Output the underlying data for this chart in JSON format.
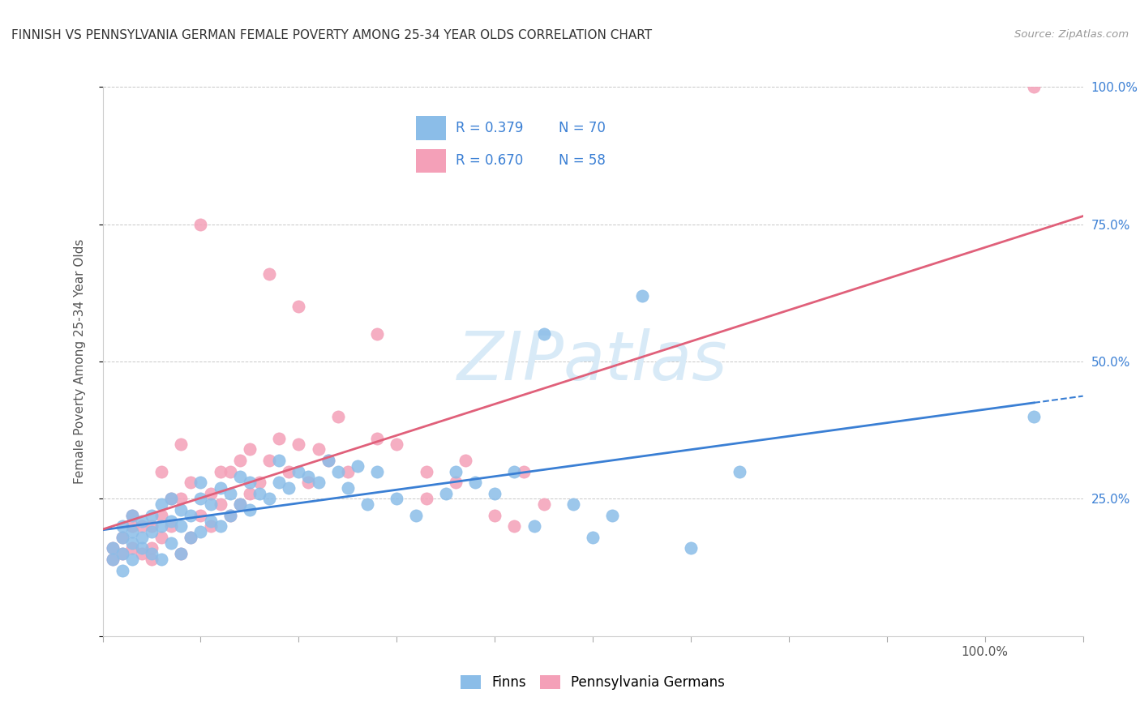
{
  "title": "FINNISH VS PENNSYLVANIA GERMAN FEMALE POVERTY AMONG 25-34 YEAR OLDS CORRELATION CHART",
  "source": "Source: ZipAtlas.com",
  "ylabel": "Female Poverty Among 25-34 Year Olds",
  "xlim": [
    0,
    1.0
  ],
  "ylim": [
    0,
    1.0
  ],
  "finn_R": 0.379,
  "finn_N": 70,
  "pagerman_R": 0.67,
  "pagerman_N": 58,
  "finn_color": "#8bbde8",
  "pagerman_color": "#f4a0b8",
  "finn_line_color": "#3a7fd4",
  "pagerman_line_color": "#e0607a",
  "legend_label_finn": "Finns",
  "legend_label_pagerman": "Pennsylvania Germans",
  "finn_scatter": [
    [
      0.01,
      0.14
    ],
    [
      0.01,
      0.16
    ],
    [
      0.02,
      0.12
    ],
    [
      0.02,
      0.15
    ],
    [
      0.02,
      0.18
    ],
    [
      0.02,
      0.2
    ],
    [
      0.03,
      0.14
    ],
    [
      0.03,
      0.17
    ],
    [
      0.03,
      0.19
    ],
    [
      0.03,
      0.22
    ],
    [
      0.04,
      0.16
    ],
    [
      0.04,
      0.18
    ],
    [
      0.04,
      0.21
    ],
    [
      0.05,
      0.15
    ],
    [
      0.05,
      0.19
    ],
    [
      0.05,
      0.22
    ],
    [
      0.06,
      0.14
    ],
    [
      0.06,
      0.2
    ],
    [
      0.06,
      0.24
    ],
    [
      0.07,
      0.17
    ],
    [
      0.07,
      0.21
    ],
    [
      0.07,
      0.25
    ],
    [
      0.08,
      0.15
    ],
    [
      0.08,
      0.2
    ],
    [
      0.08,
      0.23
    ],
    [
      0.09,
      0.18
    ],
    [
      0.09,
      0.22
    ],
    [
      0.1,
      0.19
    ],
    [
      0.1,
      0.25
    ],
    [
      0.1,
      0.28
    ],
    [
      0.11,
      0.21
    ],
    [
      0.11,
      0.24
    ],
    [
      0.12,
      0.2
    ],
    [
      0.12,
      0.27
    ],
    [
      0.13,
      0.22
    ],
    [
      0.13,
      0.26
    ],
    [
      0.14,
      0.24
    ],
    [
      0.14,
      0.29
    ],
    [
      0.15,
      0.23
    ],
    [
      0.15,
      0.28
    ],
    [
      0.16,
      0.26
    ],
    [
      0.17,
      0.25
    ],
    [
      0.18,
      0.28
    ],
    [
      0.18,
      0.32
    ],
    [
      0.19,
      0.27
    ],
    [
      0.2,
      0.3
    ],
    [
      0.21,
      0.29
    ],
    [
      0.22,
      0.28
    ],
    [
      0.23,
      0.32
    ],
    [
      0.24,
      0.3
    ],
    [
      0.25,
      0.27
    ],
    [
      0.26,
      0.31
    ],
    [
      0.27,
      0.24
    ],
    [
      0.28,
      0.3
    ],
    [
      0.3,
      0.25
    ],
    [
      0.32,
      0.22
    ],
    [
      0.35,
      0.26
    ],
    [
      0.36,
      0.3
    ],
    [
      0.38,
      0.28
    ],
    [
      0.4,
      0.26
    ],
    [
      0.42,
      0.3
    ],
    [
      0.44,
      0.2
    ],
    [
      0.45,
      0.55
    ],
    [
      0.48,
      0.24
    ],
    [
      0.5,
      0.18
    ],
    [
      0.52,
      0.22
    ],
    [
      0.55,
      0.62
    ],
    [
      0.6,
      0.16
    ],
    [
      0.65,
      0.3
    ],
    [
      0.95,
      0.4
    ]
  ],
  "pagerman_scatter": [
    [
      0.01,
      0.14
    ],
    [
      0.01,
      0.16
    ],
    [
      0.02,
      0.15
    ],
    [
      0.02,
      0.18
    ],
    [
      0.03,
      0.16
    ],
    [
      0.03,
      0.2
    ],
    [
      0.03,
      0.22
    ],
    [
      0.04,
      0.15
    ],
    [
      0.04,
      0.2
    ],
    [
      0.05,
      0.14
    ],
    [
      0.05,
      0.16
    ],
    [
      0.05,
      0.2
    ],
    [
      0.06,
      0.18
    ],
    [
      0.06,
      0.22
    ],
    [
      0.06,
      0.3
    ],
    [
      0.07,
      0.2
    ],
    [
      0.07,
      0.25
    ],
    [
      0.08,
      0.15
    ],
    [
      0.08,
      0.25
    ],
    [
      0.08,
      0.35
    ],
    [
      0.09,
      0.18
    ],
    [
      0.09,
      0.28
    ],
    [
      0.1,
      0.22
    ],
    [
      0.11,
      0.2
    ],
    [
      0.11,
      0.26
    ],
    [
      0.12,
      0.24
    ],
    [
      0.12,
      0.3
    ],
    [
      0.13,
      0.22
    ],
    [
      0.13,
      0.3
    ],
    [
      0.14,
      0.24
    ],
    [
      0.14,
      0.32
    ],
    [
      0.15,
      0.26
    ],
    [
      0.15,
      0.34
    ],
    [
      0.16,
      0.28
    ],
    [
      0.17,
      0.32
    ],
    [
      0.18,
      0.36
    ],
    [
      0.19,
      0.3
    ],
    [
      0.2,
      0.35
    ],
    [
      0.21,
      0.28
    ],
    [
      0.22,
      0.34
    ],
    [
      0.23,
      0.32
    ],
    [
      0.24,
      0.4
    ],
    [
      0.25,
      0.3
    ],
    [
      0.28,
      0.36
    ],
    [
      0.3,
      0.35
    ],
    [
      0.33,
      0.25
    ],
    [
      0.33,
      0.3
    ],
    [
      0.36,
      0.28
    ],
    [
      0.37,
      0.32
    ],
    [
      0.4,
      0.22
    ],
    [
      0.42,
      0.2
    ],
    [
      0.43,
      0.3
    ],
    [
      0.45,
      0.24
    ],
    [
      0.1,
      0.75
    ],
    [
      0.17,
      0.66
    ],
    [
      0.2,
      0.6
    ],
    [
      0.28,
      0.55
    ],
    [
      0.95,
      1.0
    ]
  ],
  "background_color": "#ffffff",
  "grid_color": "#c8c8c8",
  "title_color": "#333333",
  "axis_label_color": "#555555",
  "tick_label_color_right": "#3a7fd4",
  "watermark_color": "#d8eaf7",
  "legend_R_color": "#3a7fd4",
  "legend_N_color": "#3a7fd4"
}
